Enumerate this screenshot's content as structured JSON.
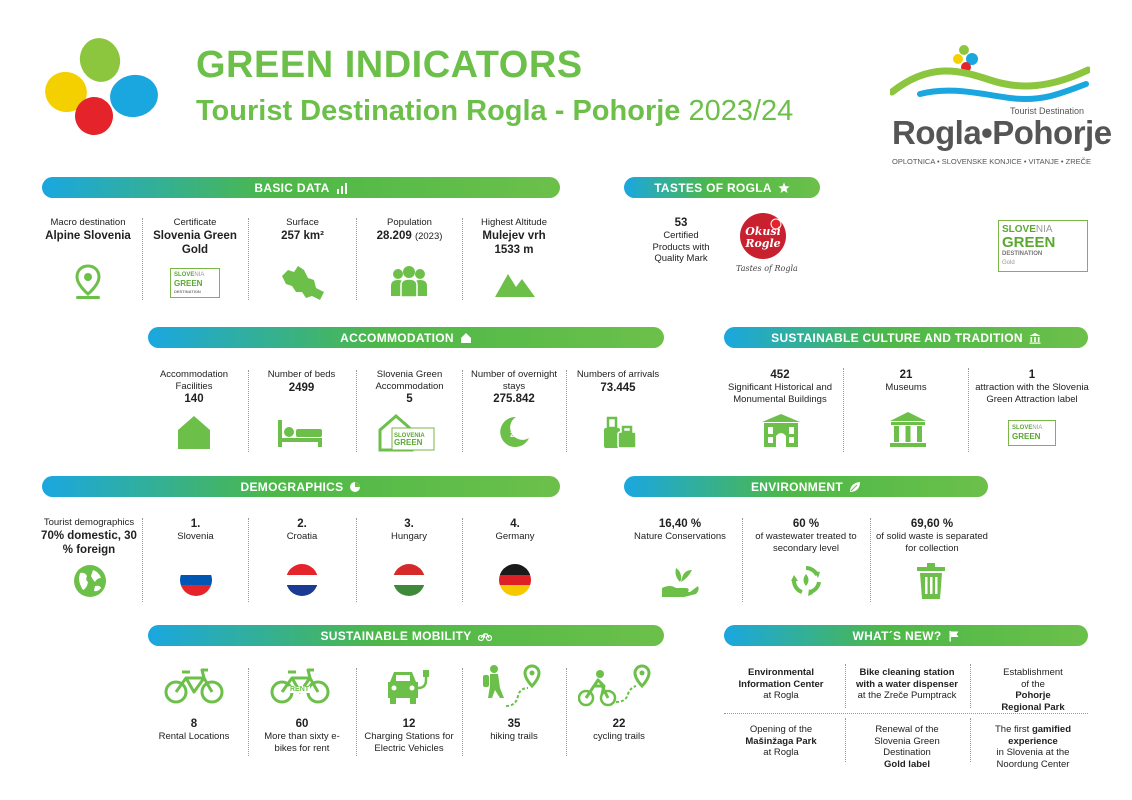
{
  "header": {
    "title": "GREEN INDICATORS",
    "subtitle": "Tourist Destination Rogla - Pohorje",
    "year": "2023/24"
  },
  "brand": {
    "small_label": "Tourist Destination",
    "name": "Rogla•Pohorje",
    "places": "OPLOTNICA • SLOVENSKE KONJICE • VITANJE • ZREČE"
  },
  "colors": {
    "green": "#6cc04a",
    "blue": "#1aa7e0",
    "red": "#e4232b",
    "yellow": "#f4d000"
  },
  "basic": {
    "title": "BASIC DATA",
    "items": [
      {
        "label": "Macro destination",
        "value": "Alpine Slovenia",
        "icon": "location-pin-icon"
      },
      {
        "label": "Certificate",
        "value": "Slovenia Green Gold",
        "icon": "slovenia-green-badge"
      },
      {
        "label": "Surface",
        "value": "257 km²",
        "icon": "map-icon"
      },
      {
        "label": "Population",
        "value": "28.209",
        "note": "(2023)",
        "icon": "people-icon"
      },
      {
        "label": "Highest Altitude",
        "value": "Mulejev vrh 1533 m",
        "icon": "mountain-icon"
      }
    ]
  },
  "tastes": {
    "title": "TASTES OF ROGLA",
    "count": "53",
    "text": "Certified Products with Quality Mark",
    "logo_text": "Okusi Rogle",
    "logo_sub": "Tastes of Rogla"
  },
  "sg_badge": {
    "line1a": "SLOVE",
    "line1b": "NIA",
    "line2": "GREEN",
    "line3": "DESTINATION",
    "line4": "Gold"
  },
  "accommodation": {
    "title": "ACCOMMODATION",
    "items": [
      {
        "label": "Accommodation Facilities",
        "value": "140",
        "icon": "house-icon"
      },
      {
        "label": "Number of beds",
        "value": "2499",
        "icon": "bed-icon"
      },
      {
        "label": "Slovenia Green Accommodation",
        "value": "5",
        "icon": "green-accommodation-icon"
      },
      {
        "label": "Number of overnight stays",
        "value": "275.842",
        "icon": "moon-icon"
      },
      {
        "label": "Numbers of arrivals",
        "value": "73.445",
        "icon": "luggage-icon"
      }
    ]
  },
  "culture": {
    "title": "SUSTAINABLE CULTURE AND TRADITION",
    "items": [
      {
        "value": "452",
        "label": "Significant Historical and Monumental Buildings",
        "icon": "historic-building-icon"
      },
      {
        "value": "21",
        "label": "Museums",
        "icon": "museum-icon"
      },
      {
        "value": "1",
        "label": "attraction with the Slovenia Green Attraction label",
        "icon": "slovenia-green-badge"
      }
    ]
  },
  "demographics": {
    "title": "DEMOGRAPHICS",
    "intro_label": "Tourist demographics",
    "intro_value": "70% domestic, 30 % foreign",
    "countries": [
      {
        "rank": "1.",
        "name": "Slovenia",
        "icon": "flag-slovenia"
      },
      {
        "rank": "2.",
        "name": "Croatia",
        "icon": "flag-croatia"
      },
      {
        "rank": "3.",
        "name": "Hungary",
        "icon": "flag-hungary"
      },
      {
        "rank": "4.",
        "name": "Germany",
        "icon": "flag-germany"
      }
    ]
  },
  "environment": {
    "title": "ENVIRONMENT",
    "items": [
      {
        "value": "16,40 %",
        "label": "Nature Conservations",
        "icon": "hand-plant-icon"
      },
      {
        "value": "60 %",
        "label": "of wastewater treated to secondary level",
        "icon": "recycle-icon"
      },
      {
        "value": "69,60 %",
        "label": "of solid waste is separated for collection",
        "icon": "trash-icon"
      }
    ]
  },
  "mobility": {
    "title": "SUSTAINABLE MOBILITY",
    "items": [
      {
        "value": "8",
        "label": "Rental Locations",
        "icon": "bike-icon"
      },
      {
        "value": "60",
        "label": "More than sixty e-bikes for rent",
        "icon": "rent-bike-icon",
        "badge": "RENT"
      },
      {
        "value": "12",
        "label": "Charging Stations for Electric Vehicles",
        "icon": "ev-charging-icon"
      },
      {
        "value": "35",
        "label": "hiking trails",
        "icon": "hiking-icon"
      },
      {
        "value": "22",
        "label": "cycling trails",
        "icon": "cycling-icon"
      }
    ]
  },
  "whatsnew": {
    "title": "WHAT´S NEW?",
    "row1": [
      {
        "bold": "Environmental Information Center",
        "text": "at Rogla"
      },
      {
        "bold": "Bike cleaning station with a water dispenser",
        "text": "at the Zreče Pumptrack"
      },
      {
        "pre": "Establishment of the",
        "bold": "Pohorje Regional Park"
      }
    ],
    "row2": [
      {
        "pre": "Opening of the",
        "bold": "Mašinžaga Park",
        "text": "at Rogla"
      },
      {
        "pre": "Renewal of the Slovenia Green Destination",
        "bold": "Gold label"
      },
      {
        "pre": "The first",
        "bold": "gamified experience",
        "text": "in Slovenia at the Noordung Center"
      }
    ]
  }
}
